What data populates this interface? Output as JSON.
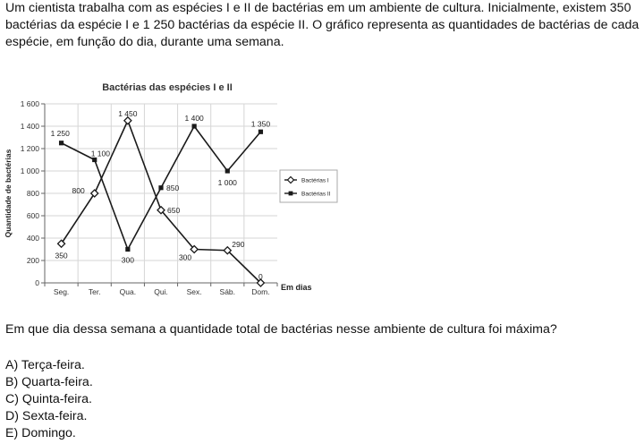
{
  "intro": "Um cientista trabalha com as espécies I e II de bactérias em um ambiente de cultura. Inicialmente, existem 350 bactérias da espécie I e 1 250 bactérias da espécie II. O gráfico representa as quantidades de bactérias de cada espécie, em função do dia, durante uma semana.",
  "question": "Em que dia dessa semana a quantidade total de bactérias nesse ambiente de cultura foi máxima?",
  "options": [
    "A) Terça-feira.",
    "B) Quarta-feira.",
    "C) Quinta-feira.",
    "D) Sexta-feira.",
    "E) Domingo."
  ],
  "chart_data": {
    "type": "line",
    "title": "Bactérias das espécies I e II",
    "xlabel": "Em dias",
    "ylabel": "Quantidade de bactérias",
    "categories": [
      "Seg.",
      "Ter.",
      "Qua.",
      "Qui.",
      "Sex.",
      "Sáb.",
      "Dom."
    ],
    "ylim": [
      0,
      1600
    ],
    "yticks": [
      0,
      200,
      400,
      600,
      800,
      1000,
      1200,
      1400,
      1600
    ],
    "ytick_labels": [
      "0",
      "200",
      "400",
      "600",
      "800",
      "1 000",
      "1 200",
      "1 400",
      "1 600"
    ],
    "legend_position": "right",
    "series": [
      {
        "name": "Bactérias I",
        "marker": "open-diamond",
        "values": [
          350,
          800,
          1450,
          650,
          300,
          290,
          0
        ],
        "labels": [
          "350",
          "800",
          "1 450",
          "650",
          "300",
          "290",
          "0"
        ]
      },
      {
        "name": "Bactérias II",
        "marker": "filled-square",
        "values": [
          1250,
          1100,
          300,
          850,
          1400,
          1000,
          1350
        ],
        "labels": [
          "1 250",
          "1 100",
          "300",
          "850",
          "1 400",
          "1 000",
          "1 350"
        ]
      }
    ]
  }
}
